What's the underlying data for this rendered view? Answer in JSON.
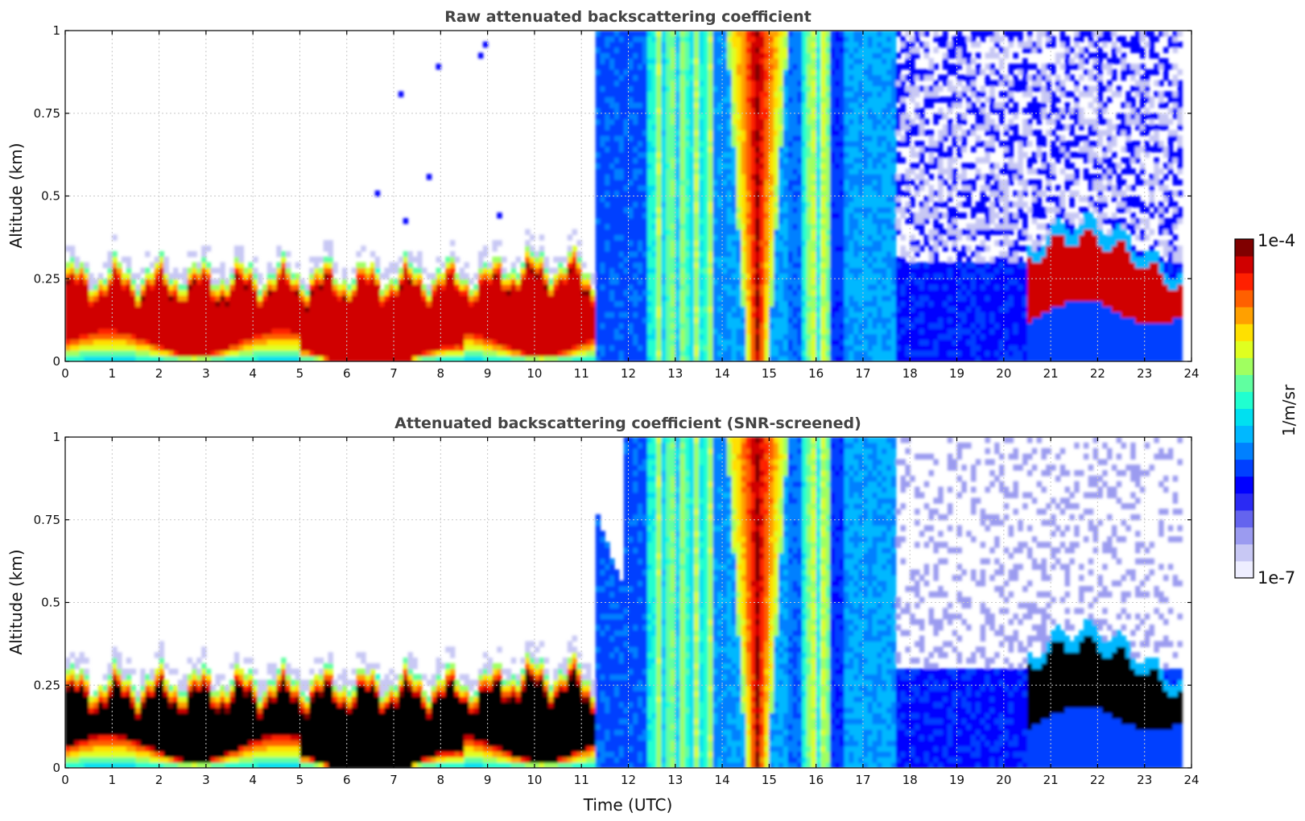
{
  "colorbar": {
    "min_label": "1e-7",
    "max_label": "1e-4",
    "label": "1/m/sr",
    "colors": [
      "#eeeeff",
      "#c8c8f4",
      "#9b9bf0",
      "#6464ee",
      "#2a2af4",
      "#0000ff",
      "#0040ff",
      "#0080ff",
      "#00b8ff",
      "#00e0f0",
      "#20ffd0",
      "#60ffa0",
      "#a0ff60",
      "#e0ff20",
      "#ffe000",
      "#ffa000",
      "#ff6000",
      "#ff2000",
      "#d00000",
      "#800000"
    ]
  },
  "chart_data": [
    {
      "type": "heatmap",
      "title": "Raw attenuated backscattering coefficient",
      "xlabel": "",
      "ylabel": "Altitude (km)",
      "xlim": [
        0,
        24
      ],
      "ylim": [
        0,
        1
      ],
      "xticks": [
        "0",
        "1",
        "2",
        "3",
        "4",
        "5",
        "6",
        "7",
        "8",
        "9",
        "10",
        "11",
        "12",
        "13",
        "14",
        "15",
        "16",
        "17",
        "18",
        "19",
        "20",
        "21",
        "22",
        "23",
        "24"
      ],
      "yticks": [
        "0",
        "0.25",
        "0.5",
        "0.75",
        "1"
      ],
      "ytick_values": [
        0,
        0.25,
        0.5,
        0.75,
        1
      ],
      "grid": true,
      "color_scale": "log",
      "units": "1/m/sr",
      "layers": [
        {
          "time_range": [
            0,
            11.3
          ],
          "top_km": 0.3,
          "core_km": [
            0.05,
            0.24
          ],
          "intensity": "high"
        },
        {
          "time_range": [
            12.4,
            13.8
          ],
          "top_km": 1,
          "intensity": "medium"
        },
        {
          "time_range": [
            14.1,
            15.4
          ],
          "top_km": 1,
          "intensity": "high"
        },
        {
          "time_range": [
            20.5,
            23.8
          ],
          "top_km": 0.38,
          "core_km": [
            0.15,
            0.33
          ],
          "intensity": "high"
        }
      ]
    },
    {
      "type": "heatmap",
      "title": "Attenuated backscattering coefficient (SNR-screened)",
      "xlabel": "Time (UTC)",
      "ylabel": "Altitude (km)",
      "xlim": [
        0,
        24
      ],
      "ylim": [
        0,
        1
      ],
      "xticks": [
        "0",
        "1",
        "2",
        "3",
        "4",
        "5",
        "6",
        "7",
        "8",
        "9",
        "10",
        "11",
        "12",
        "13",
        "14",
        "15",
        "16",
        "17",
        "18",
        "19",
        "20",
        "21",
        "22",
        "23",
        "24"
      ],
      "yticks": [
        "0",
        "0.25",
        "0.5",
        "0.75",
        "1"
      ],
      "ytick_values": [
        0,
        0.25,
        0.5,
        0.75,
        1
      ],
      "grid": true,
      "color_scale": "log",
      "units": "1/m/sr",
      "layers": [
        {
          "time_range": [
            0,
            11.3
          ],
          "top_km": 0.3,
          "core_km": [
            0.05,
            0.24
          ],
          "intensity": "saturated"
        },
        {
          "time_range": [
            12.4,
            13.8
          ],
          "top_km": 1,
          "intensity": "medium"
        },
        {
          "time_range": [
            14.1,
            15.4
          ],
          "top_km": 1,
          "intensity": "high"
        },
        {
          "time_range": [
            20.5,
            23.8
          ],
          "top_km": 0.4,
          "core_km": [
            0.15,
            0.33
          ],
          "intensity": "saturated"
        }
      ]
    }
  ]
}
